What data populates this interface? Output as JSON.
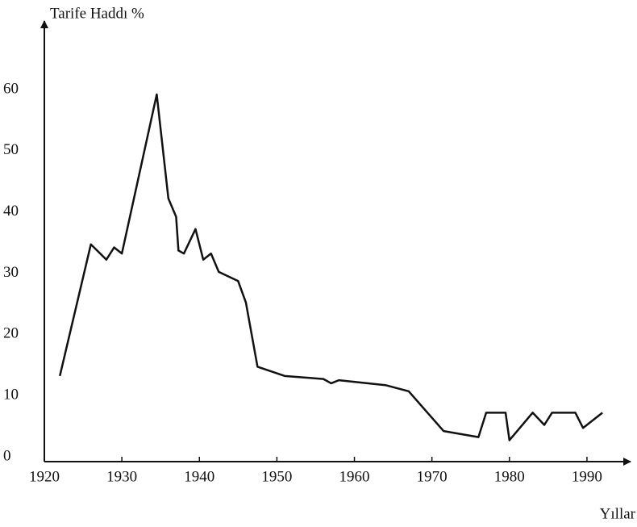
{
  "chart_data": {
    "type": "line",
    "y_label": "Tarife Haddı %",
    "x_label": "Yıllar",
    "x": [
      1922,
      1926,
      1928,
      1929,
      1930,
      1934.5,
      1936,
      1937,
      1937.3,
      1938,
      1939.5,
      1940.5,
      1941.5,
      1942.5,
      1945,
      1946,
      1947.5,
      1951,
      1956,
      1957,
      1958,
      1964,
      1967,
      1971.5,
      1976,
      1977,
      1979.5,
      1980,
      1983,
      1984.5,
      1985.5,
      1988.5,
      1989.5,
      1992
    ],
    "series": [
      {
        "color": "#111111",
        "values": [
          14,
          35.5,
          33,
          35,
          34,
          60,
          43,
          40,
          34.5,
          34,
          38,
          33,
          34,
          31,
          29.5,
          26,
          15.5,
          14,
          13.5,
          12.8,
          13.3,
          12.5,
          11.5,
          5,
          4,
          8,
          8,
          3.5,
          8,
          6,
          8,
          8,
          5.5,
          8
        ]
      }
    ],
    "xlim": [
      1920,
      1995
    ],
    "ylim": [
      0,
      72
    ],
    "xticks": [
      1920,
      1930,
      1940,
      1950,
      1960,
      1970,
      1980,
      1990
    ],
    "yticks": [
      0,
      10,
      20,
      30,
      40,
      50,
      60
    ],
    "grid": false
  }
}
